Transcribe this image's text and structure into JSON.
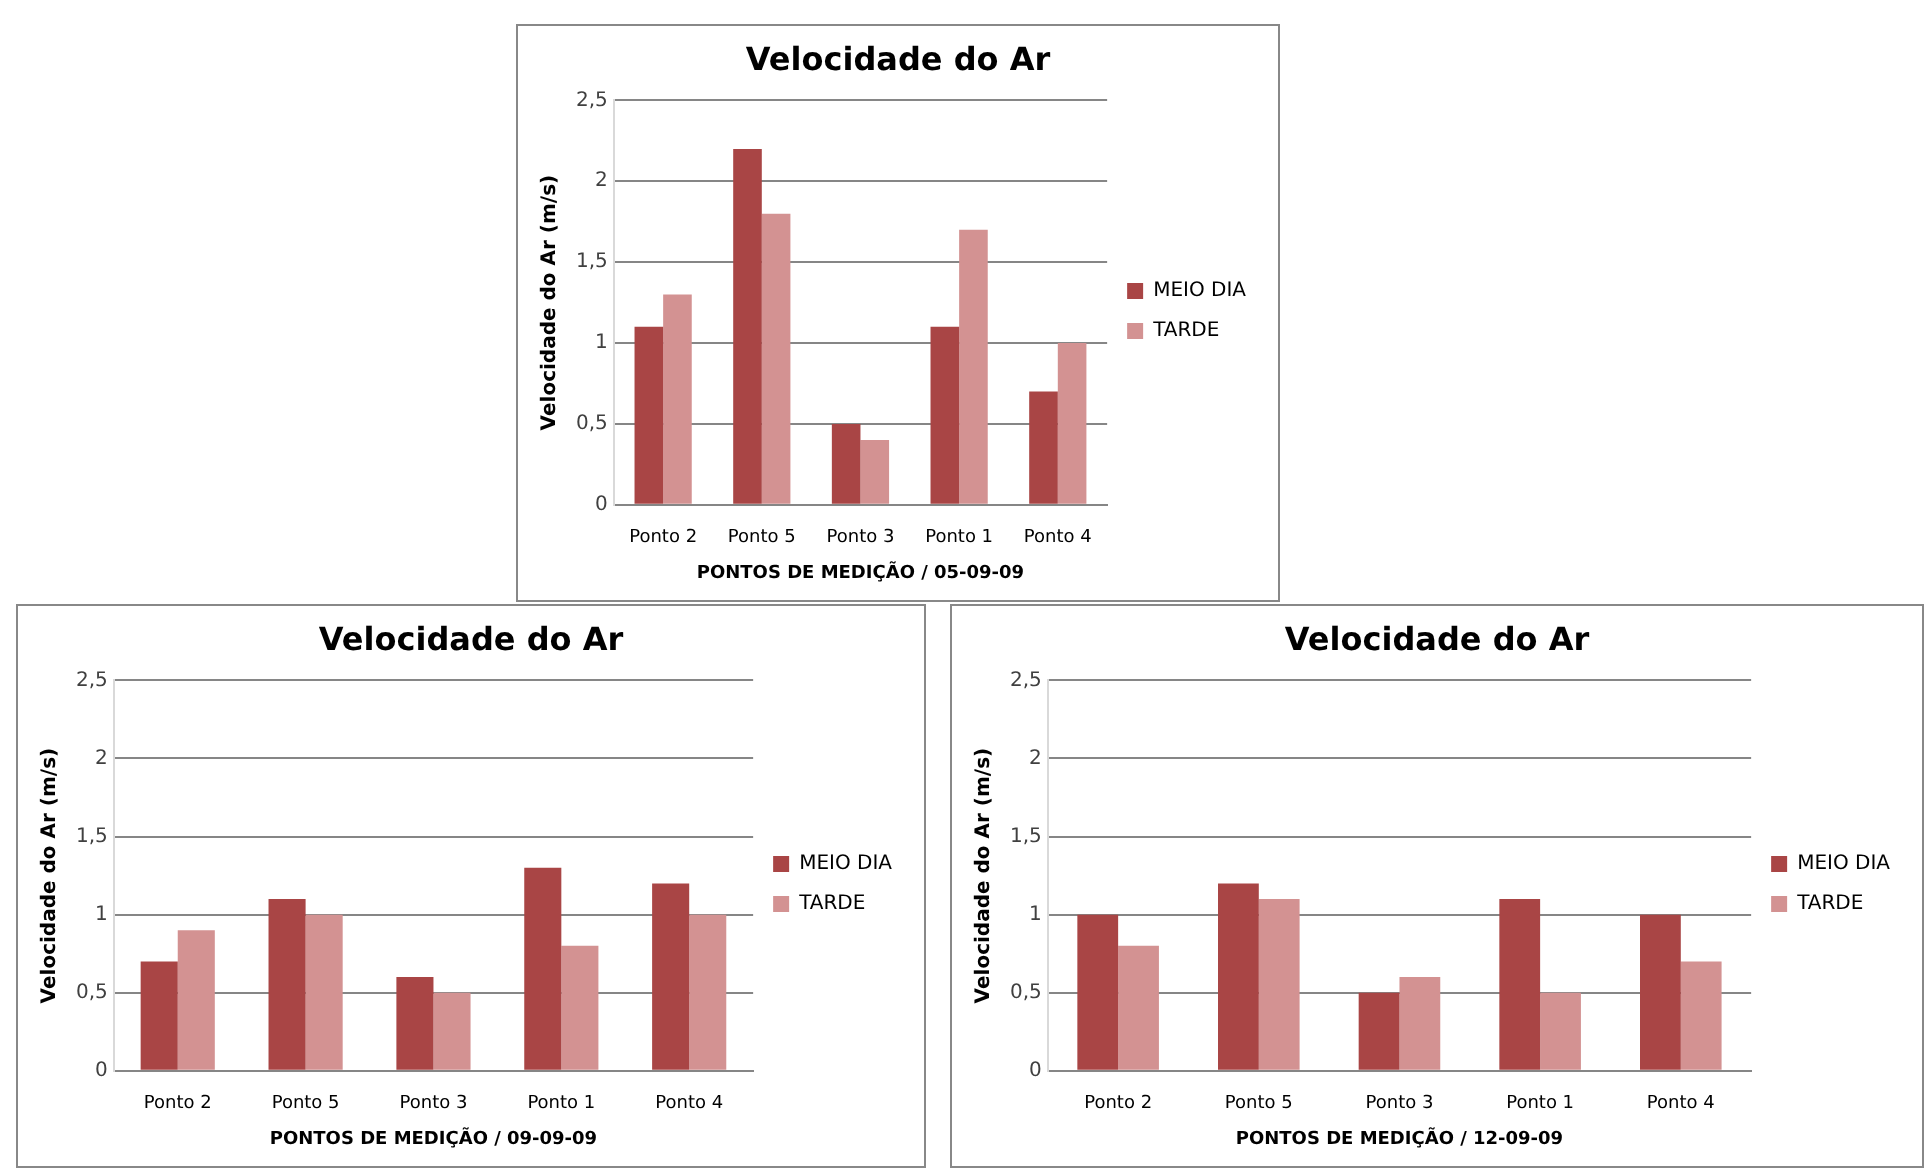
{
  "chart_data": [
    {
      "type": "bar",
      "title": "Velocidade do Ar",
      "xlabel": "PONTOS DE MEDIÇÃO / 05-09-09",
      "ylabel": "Velocidade do Ar (m/s)",
      "categories": [
        "Ponto 2",
        "Ponto 5",
        "Ponto 3",
        "Ponto 1",
        "Ponto 4"
      ],
      "series": [
        {
          "name": "MEIO DIA",
          "color": "#a94545",
          "values": [
            1.1,
            2.2,
            0.5,
            1.1,
            0.7
          ]
        },
        {
          "name": "TARDE",
          "color": "#d39292",
          "values": [
            1.3,
            1.8,
            0.4,
            1.7,
            1.0
          ]
        }
      ],
      "ylim": [
        0,
        2.5
      ],
      "yticks": [
        0,
        {
          "value": 0.5,
          "label": "0,5"
        },
        1,
        {
          "value": 1.5,
          "label": "1,5"
        },
        2,
        {
          "value": 2.5,
          "label": "2,5"
        }
      ],
      "grid": "y",
      "legend": "right"
    },
    {
      "type": "bar",
      "title": "Velocidade do Ar",
      "xlabel": "PONTOS DE MEDIÇÃO / 09-09-09",
      "ylabel": "Velocidade do Ar (m/s)",
      "categories": [
        "Ponto 2",
        "Ponto 5",
        "Ponto 3",
        "Ponto 1",
        "Ponto 4"
      ],
      "series": [
        {
          "name": "MEIO DIA",
          "color": "#a94545",
          "values": [
            0.7,
            1.1,
            0.6,
            1.3,
            1.2
          ]
        },
        {
          "name": "TARDE",
          "color": "#d39292",
          "values": [
            0.9,
            1.0,
            0.5,
            0.8,
            1.0
          ]
        }
      ],
      "ylim": [
        0,
        2.5
      ],
      "yticks": [
        0,
        {
          "value": 0.5,
          "label": "0,5"
        },
        1,
        {
          "value": 1.5,
          "label": "1,5"
        },
        2,
        {
          "value": 2.5,
          "label": "2,5"
        }
      ],
      "grid": "y",
      "legend": "right"
    },
    {
      "type": "bar",
      "title": "Velocidade do Ar",
      "xlabel": "PONTOS DE MEDIÇÃO / 12-09-09",
      "ylabel": "Velocidade do Ar (m/s)",
      "categories": [
        "Ponto 2",
        "Ponto 5",
        "Ponto 3",
        "Ponto 1",
        "Ponto 4"
      ],
      "series": [
        {
          "name": "MEIO DIA",
          "color": "#a94545",
          "values": [
            1.0,
            1.2,
            0.5,
            1.1,
            1.0
          ]
        },
        {
          "name": "TARDE",
          "color": "#d39292",
          "values": [
            0.8,
            1.1,
            0.6,
            0.5,
            0.7
          ]
        }
      ],
      "ylim": [
        0,
        2.5
      ],
      "yticks": [
        0,
        {
          "value": 0.5,
          "label": "0,5"
        },
        1,
        {
          "value": 1.5,
          "label": "1,5"
        },
        2,
        {
          "value": 2.5,
          "label": "2,5"
        }
      ],
      "grid": "y",
      "legend": "right"
    }
  ]
}
